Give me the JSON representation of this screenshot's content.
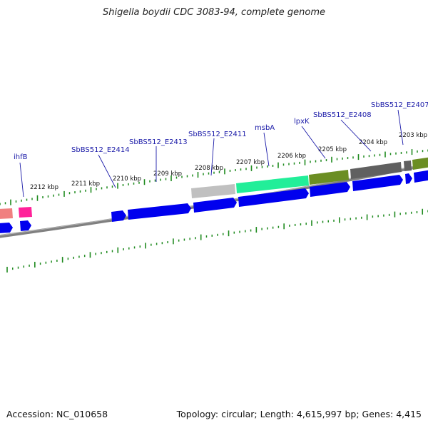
{
  "title": "Shigella boydii CDC 3083-94, complete genome",
  "footer": {
    "accession": "Accession: NC_010658",
    "summary": "Topology: circular; Length: 4,615,997 bp; Genes: 4,415"
  },
  "scale_labels": [
    "2212 kbp",
    "2211 kbp",
    "2210 kbp",
    "2209 kbp",
    "2208 kbp",
    "2207 kbp",
    "2206 kbp",
    "2205 kbp",
    "2204 kbp",
    "2203 kbp"
  ],
  "gene_labels": [
    "ihfB",
    "SbBS512_E2414",
    "SbBS512_E2413",
    "SbBS512_E2411",
    "msbA",
    "lpxK",
    "SbBS512_E2408",
    "SbBS512_E2407"
  ],
  "colors": {
    "backbone": "#808080",
    "tick": "#1e8a1e",
    "cds": "#0000ee",
    "pink": "#ff2299",
    "salmon": "#f08080",
    "lightgray": "#c0c0c0",
    "aqua": "#22ee99",
    "olive": "#6b8e23",
    "darkgray": "#606060",
    "label": "#1a1aa8"
  }
}
